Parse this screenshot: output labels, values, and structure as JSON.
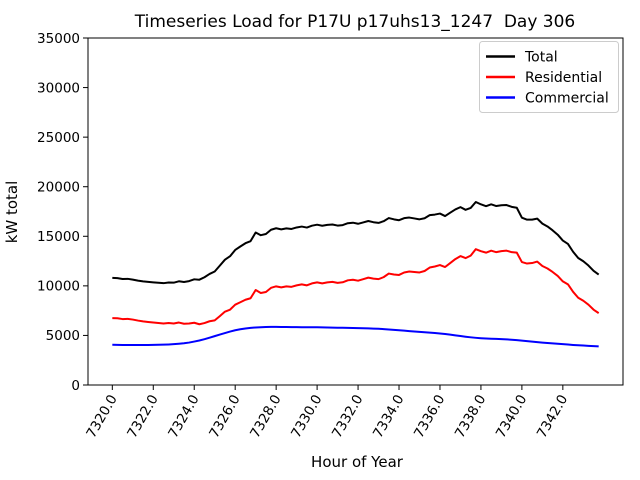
{
  "chart_data": {
    "type": "line",
    "title": "Timeseries Load for P17U p17uhs13_1247  Day 306",
    "xlabel": "Hour of Year",
    "ylabel": "kW total",
    "xlim": [
      7318.8125,
      7344.9375
    ],
    "ylim": [
      0,
      35000
    ],
    "grid": false,
    "legend_position": "upper right",
    "xtick_rotation": 60,
    "yticks": [
      0,
      5000,
      10000,
      15000,
      20000,
      25000,
      30000,
      35000
    ],
    "ytick_labels": [
      "0",
      "5000",
      "10000",
      "15000",
      "20000",
      "25000",
      "30000",
      "35000"
    ],
    "xticks": [
      7320,
      7322,
      7324,
      7326,
      7328,
      7330,
      7332,
      7334,
      7336,
      7338,
      7340,
      7342
    ],
    "xtick_labels": [
      "7320.0",
      "7322.0",
      "7324.0",
      "7326.0",
      "7328.0",
      "7330.0",
      "7332.0",
      "7334.0",
      "7336.0",
      "7338.0",
      "7340.0",
      "7342.0"
    ],
    "x": [
      7320.0,
      7320.25,
      7320.5,
      7320.75,
      7321.0,
      7321.25,
      7321.5,
      7321.75,
      7322.0,
      7322.25,
      7322.5,
      7322.75,
      7323.0,
      7323.25,
      7323.5,
      7323.75,
      7324.0,
      7324.25,
      7324.5,
      7324.75,
      7325.0,
      7325.25,
      7325.5,
      7325.75,
      7326.0,
      7326.25,
      7326.5,
      7326.75,
      7327.0,
      7327.25,
      7327.5,
      7327.75,
      7328.0,
      7328.25,
      7328.5,
      7328.75,
      7329.0,
      7329.25,
      7329.5,
      7329.75,
      7330.0,
      7330.25,
      7330.5,
      7330.75,
      7331.0,
      7331.25,
      7331.5,
      7331.75,
      7332.0,
      7332.25,
      7332.5,
      7332.75,
      7333.0,
      7333.25,
      7333.5,
      7333.75,
      7334.0,
      7334.25,
      7334.5,
      7334.75,
      7335.0,
      7335.25,
      7335.5,
      7335.75,
      7336.0,
      7336.25,
      7336.5,
      7336.75,
      7337.0,
      7337.25,
      7337.5,
      7337.75,
      7338.0,
      7338.25,
      7338.5,
      7338.75,
      7339.0,
      7339.25,
      7339.5,
      7339.75,
      7340.0,
      7340.25,
      7340.5,
      7340.75,
      7341.0,
      7341.25,
      7341.5,
      7341.75,
      7342.0,
      7342.25,
      7342.5,
      7342.75,
      7343.0,
      7343.25,
      7343.5,
      7343.75
    ],
    "series": [
      {
        "name": "Total",
        "color": "#000000",
        "values": [
          10800,
          10780,
          10690,
          10710,
          10630,
          10530,
          10450,
          10400,
          10350,
          10310,
          10270,
          10340,
          10320,
          10460,
          10390,
          10480,
          10660,
          10620,
          10870,
          11200,
          11450,
          12040,
          12640,
          12990,
          13620,
          13970,
          14300,
          14510,
          15380,
          15110,
          15230,
          15660,
          15810,
          15700,
          15800,
          15740,
          15890,
          15980,
          15880,
          16070,
          16170,
          16060,
          16150,
          16190,
          16080,
          16130,
          16320,
          16370,
          16260,
          16400,
          16540,
          16420,
          16350,
          16520,
          16840,
          16710,
          16620,
          16830,
          16890,
          16800,
          16710,
          16820,
          17130,
          17190,
          17290,
          17040,
          17380,
          17710,
          17940,
          17670,
          17860,
          18460,
          18220,
          18040,
          18220,
          18050,
          18130,
          18150,
          17970,
          17880,
          16880,
          16680,
          16680,
          16780,
          16280,
          15990,
          15600,
          15160,
          14570,
          14230,
          13440,
          12810,
          12480,
          12050,
          11520,
          11140
        ]
      },
      {
        "name": "Residential",
        "color": "#ff0000",
        "values": [
          6740,
          6730,
          6650,
          6670,
          6600,
          6500,
          6420,
          6360,
          6300,
          6250,
          6200,
          6250,
          6200,
          6300,
          6180,
          6200,
          6280,
          6130,
          6250,
          6430,
          6520,
          6950,
          7400,
          7600,
          8100,
          8350,
          8600,
          8750,
          9580,
          9280,
          9380,
          9800,
          9950,
          9850,
          9950,
          9900,
          10050,
          10150,
          10050,
          10250,
          10350,
          10250,
          10350,
          10400,
          10300,
          10360,
          10560,
          10620,
          10520,
          10670,
          10830,
          10730,
          10680,
          10880,
          11240,
          11150,
          11100,
          11350,
          11450,
          11400,
          11350,
          11500,
          11850,
          11950,
          12100,
          11900,
          12300,
          12700,
          13000,
          12800,
          13050,
          13700,
          13500,
          13350,
          13550,
          13400,
          13500,
          13550,
          13400,
          13350,
          12400,
          12250,
          12300,
          12450,
          12000,
          11750,
          11400,
          11000,
          10450,
          10150,
          9400,
          8800,
          8500,
          8100,
          7600,
          7250
        ]
      },
      {
        "name": "Commercial",
        "color": "#0000ff",
        "values": [
          4060,
          4050,
          4040,
          4040,
          4030,
          4030,
          4030,
          4040,
          4050,
          4060,
          4070,
          4090,
          4120,
          4160,
          4210,
          4280,
          4380,
          4490,
          4620,
          4770,
          4930,
          5090,
          5240,
          5390,
          5520,
          5620,
          5700,
          5760,
          5800,
          5830,
          5850,
          5860,
          5860,
          5850,
          5850,
          5840,
          5840,
          5830,
          5830,
          5820,
          5820,
          5810,
          5800,
          5790,
          5780,
          5770,
          5760,
          5750,
          5740,
          5730,
          5710,
          5690,
          5670,
          5640,
          5600,
          5560,
          5520,
          5480,
          5440,
          5400,
          5360,
          5320,
          5280,
          5240,
          5190,
          5140,
          5080,
          5010,
          4940,
          4870,
          4810,
          4760,
          4720,
          4690,
          4670,
          4650,
          4630,
          4600,
          4570,
          4530,
          4480,
          4430,
          4380,
          4330,
          4280,
          4240,
          4200,
          4160,
          4120,
          4080,
          4040,
          4010,
          3980,
          3950,
          3920,
          3890
        ]
      }
    ]
  }
}
